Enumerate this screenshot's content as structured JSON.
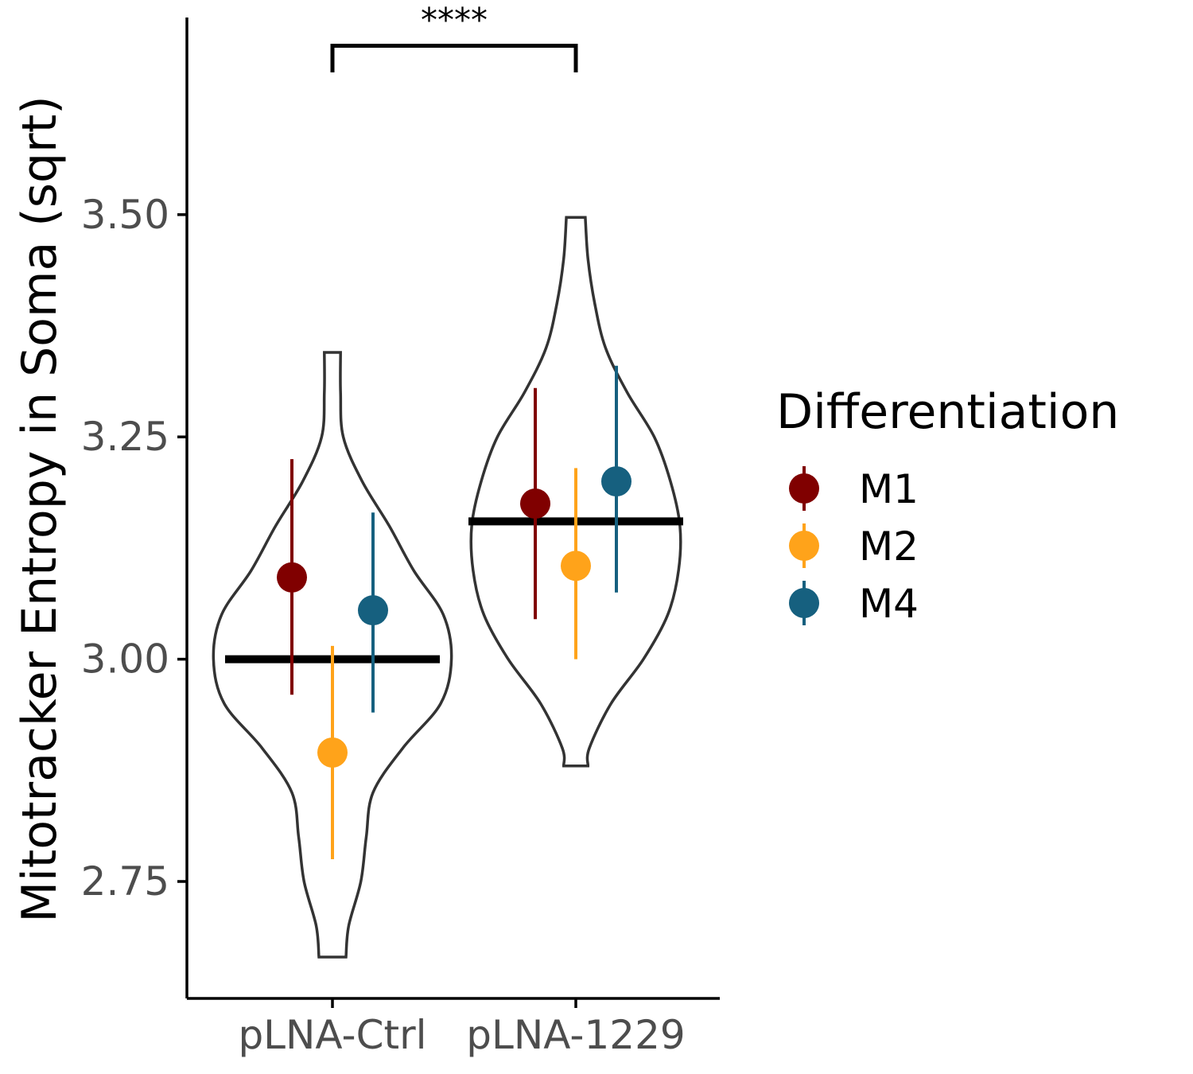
{
  "chart_data": {
    "type": "violin",
    "ylabel": "Mitotracker Entropy in Soma (sqrt)",
    "xlabel": "",
    "categories": [
      "pLNA-Ctrl",
      "pLNA-1229"
    ],
    "y_ticks": [
      2.75,
      3.0,
      3.25,
      3.5
    ],
    "y_tick_labels": [
      "2.75",
      "3.00",
      "3.25",
      "3.50"
    ],
    "ylim": [
      2.62,
      3.725
    ],
    "legend": {
      "title": "Differentiation",
      "position": "right",
      "entries": [
        {
          "name": "M1",
          "color": "#800000"
        },
        {
          "name": "M2",
          "color": "#FFA31A"
        },
        {
          "name": "M4",
          "color": "#16607F"
        }
      ]
    },
    "violins": [
      {
        "category": "pLNA-Ctrl",
        "mean": 3.0,
        "profile": [
          [
            2.665,
            0.1
          ],
          [
            2.7,
            0.12
          ],
          [
            2.75,
            0.21
          ],
          [
            2.8,
            0.25
          ],
          [
            2.85,
            0.3
          ],
          [
            2.9,
            0.52
          ],
          [
            2.95,
            0.8
          ],
          [
            3.0,
            0.88
          ],
          [
            3.05,
            0.82
          ],
          [
            3.1,
            0.6
          ],
          [
            3.15,
            0.42
          ],
          [
            3.2,
            0.22
          ],
          [
            3.25,
            0.08
          ],
          [
            3.3,
            0.06
          ],
          [
            3.345,
            0.06
          ]
        ]
      },
      {
        "category": "pLNA-1229",
        "mean": 3.155,
        "profile": [
          [
            2.88,
            0.09
          ],
          [
            2.9,
            0.1
          ],
          [
            2.95,
            0.26
          ],
          [
            3.0,
            0.5
          ],
          [
            3.05,
            0.68
          ],
          [
            3.1,
            0.76
          ],
          [
            3.15,
            0.77
          ],
          [
            3.2,
            0.7
          ],
          [
            3.25,
            0.58
          ],
          [
            3.3,
            0.38
          ],
          [
            3.35,
            0.22
          ],
          [
            3.4,
            0.14
          ],
          [
            3.45,
            0.09
          ],
          [
            3.497,
            0.07
          ]
        ]
      }
    ],
    "series": [
      {
        "name": "M1",
        "color": "#800000",
        "points": [
          {
            "category": "pLNA-Ctrl",
            "y": 3.092,
            "lower": 2.96,
            "upper": 3.225
          },
          {
            "category": "pLNA-1229",
            "y": 3.175,
            "lower": 3.045,
            "upper": 3.305
          }
        ]
      },
      {
        "name": "M2",
        "color": "#FFA31A",
        "points": [
          {
            "category": "pLNA-Ctrl",
            "y": 2.895,
            "lower": 2.775,
            "upper": 3.015
          },
          {
            "category": "pLNA-1229",
            "y": 3.105,
            "lower": 3.0,
            "upper": 3.215
          }
        ]
      },
      {
        "name": "M4",
        "color": "#16607F",
        "points": [
          {
            "category": "pLNA-Ctrl",
            "y": 3.055,
            "lower": 2.94,
            "upper": 3.165
          },
          {
            "category": "pLNA-1229",
            "y": 3.2,
            "lower": 3.075,
            "upper": 3.33
          }
        ]
      }
    ],
    "significance": {
      "from": "pLNA-Ctrl",
      "to": "pLNA-1229",
      "label": "****",
      "y": 3.69,
      "tip_y": 3.66
    }
  }
}
